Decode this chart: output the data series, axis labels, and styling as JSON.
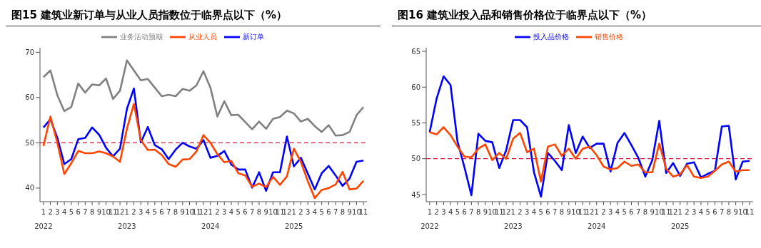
{
  "chart_data": [
    {
      "type": "line",
      "title": "图15 建筑业新订单与从业人员指数位于临界点以下（%）",
      "categories": [
        "1",
        "2",
        "3",
        "4",
        "5",
        "6",
        "7",
        "8",
        "9",
        "10",
        "11",
        "12",
        "1",
        "2",
        "3",
        "4",
        "5",
        "6",
        "7",
        "8",
        "9",
        "10",
        "11",
        "12",
        "1",
        "2",
        "3",
        "4",
        "5",
        "6",
        "7",
        "8",
        "9",
        "10",
        "11",
        "12",
        "1",
        "2",
        "3",
        "4",
        "5",
        "6",
        "7",
        "8",
        "9",
        "10",
        "11"
      ],
      "series": [
        {
          "name": "新订单",
          "color": "#0000ff",
          "values": [
            53.4,
            55.2,
            51.1,
            45.3,
            46.4,
            50.8,
            51.1,
            53.4,
            51.8,
            48.9,
            47.0,
            48.7,
            57.5,
            62.0,
            50.1,
            53.5,
            49.5,
            48.6,
            46.4,
            48.5,
            50.0,
            49.2,
            48.7,
            50.6,
            46.7,
            47.1,
            48.2,
            45.2,
            44.1,
            44.1,
            40.1,
            43.5,
            39.4,
            43.5,
            43.5,
            51.4,
            44.8,
            46.7,
            43.2,
            39.7,
            43.3,
            44.9,
            42.8,
            40.5,
            42.1,
            45.8,
            46.1
          ]
        },
        {
          "name": "从业人员",
          "color": "#ff4500",
          "values": [
            49.3,
            55.8,
            50.0,
            43.1,
            45.5,
            48.2,
            47.7,
            47.7,
            48.1,
            47.7,
            47.0,
            45.8,
            53.1,
            58.6,
            50.6,
            48.4,
            48.5,
            47.3,
            45.3,
            44.7,
            46.3,
            46.4,
            48.1,
            51.7,
            50.0,
            47.5,
            45.7,
            46.0,
            43.3,
            42.8,
            40.3,
            41.0,
            40.2,
            42.5,
            40.7,
            42.6,
            48.7,
            45.8,
            41.5,
            37.8,
            39.6,
            40.0,
            40.8,
            43.6,
            39.7,
            39.9,
            41.6
          ]
        },
        {
          "name": "业务活动预期",
          "color": "#808080",
          "values": [
            64.5,
            66.0,
            60.5,
            57.0,
            57.9,
            63.1,
            61.1,
            62.9,
            62.7,
            64.2,
            59.7,
            61.5,
            68.2,
            66.0,
            63.8,
            64.1,
            62.2,
            60.3,
            60.6,
            60.3,
            61.9,
            61.5,
            62.7,
            65.8,
            62.2,
            55.8,
            59.2,
            56.1,
            56.2,
            54.6,
            53.0,
            54.7,
            53.1,
            55.3,
            55.7,
            57.1,
            56.5,
            54.7,
            55.3,
            53.7,
            52.4,
            53.9,
            51.6,
            51.7,
            52.4,
            56.1,
            57.9
          ]
        }
      ],
      "ylim": [
        37,
        71
      ],
      "yticks": [
        40,
        50,
        60,
        70
      ],
      "ref_lines": [
        {
          "axis": "y",
          "value": 50,
          "color": "#dc143c",
          "line_style": "dashed"
        }
      ],
      "annotations": [
        "2022",
        "2023",
        "2024",
        "2025"
      ],
      "legend": "top",
      "grid": false,
      "marker": "none"
    },
    {
      "type": "line",
      "title": "图16 建筑业投入品和销售价格位于临界点以下（%）",
      "categories": [
        "1",
        "2",
        "3",
        "4",
        "5",
        "6",
        "7",
        "8",
        "9",
        "10",
        "11",
        "12",
        "1",
        "2",
        "3",
        "4",
        "5",
        "6",
        "7",
        "8",
        "9",
        "10",
        "11",
        "12",
        "1",
        "2",
        "3",
        "4",
        "5",
        "6",
        "7",
        "8",
        "9",
        "10",
        "11",
        "12",
        "1",
        "2",
        "3",
        "4",
        "5",
        "6",
        "7",
        "8",
        "9",
        "10",
        "11"
      ],
      "series": [
        {
          "name": "投入品价格",
          "color": "#0000ff",
          "values": [
            53.7,
            58.4,
            61.5,
            60.3,
            52.4,
            48.8,
            44.9,
            53.5,
            52.5,
            52.3,
            48.7,
            51.2,
            55.4,
            55.4,
            54.4,
            48.1,
            44.7,
            50.8,
            49.7,
            48.4,
            54.7,
            50.8,
            53.1,
            51.5,
            52.1,
            52.1,
            48.2,
            52.2,
            53.6,
            51.9,
            50.1,
            47.5,
            49.8,
            55.3,
            48.0,
            49.4,
            47.6,
            49.3,
            49.5,
            47.4,
            47.9,
            48.3,
            54.5,
            54.6,
            47.1,
            49.6,
            49.7
          ]
        },
        {
          "name": "销售价格",
          "color": "#ff4500",
          "values": [
            53.7,
            53.4,
            54.4,
            53.3,
            51.7,
            50.3,
            50.2,
            51.4,
            52.0,
            49.8,
            50.8,
            50.0,
            52.8,
            53.6,
            50.9,
            51.4,
            46.8,
            51.7,
            52.0,
            50.4,
            51.4,
            50.0,
            51.4,
            51.7,
            50.5,
            48.9,
            48.5,
            48.7,
            49.6,
            49.0,
            49.2,
            48.1,
            48.1,
            52.1,
            48.6,
            47.5,
            47.8,
            49.1,
            47.5,
            47.3,
            47.5,
            48.3,
            49.2,
            49.6,
            48.2,
            48.4,
            48.4
          ]
        }
      ],
      "ylim": [
        44,
        65.5
      ],
      "yticks": [
        45,
        50,
        55,
        60,
        65
      ],
      "ref_lines": [
        {
          "axis": "y",
          "value": 50,
          "color": "#dc143c",
          "line_style": "dashed"
        }
      ],
      "annotations": [
        "2022",
        "2023",
        "2024",
        "2025"
      ],
      "legend": "top",
      "grid": false,
      "marker": "none"
    }
  ]
}
